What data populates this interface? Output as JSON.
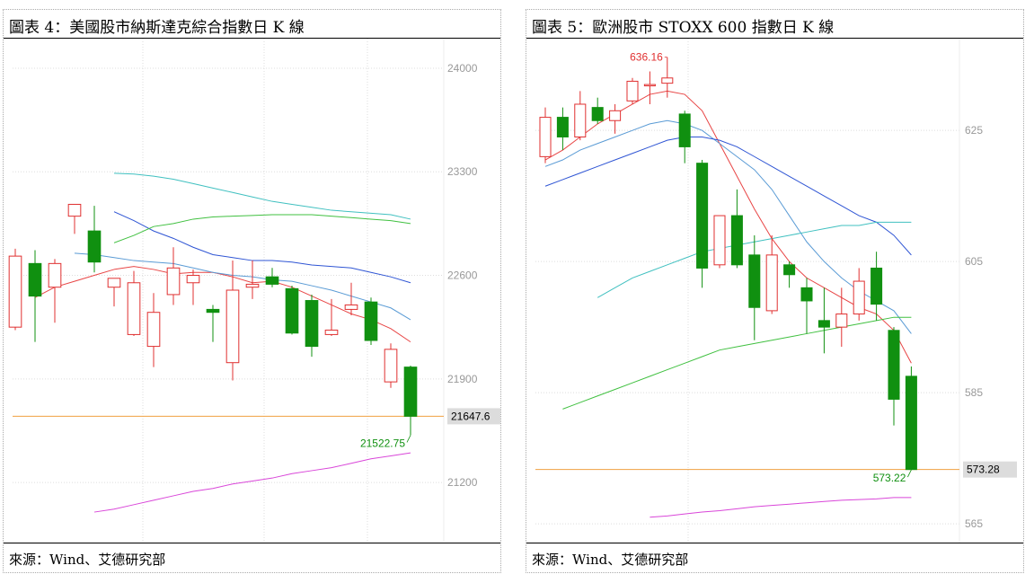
{
  "charts": [
    {
      "title": "圖表 4：美國股市納斯達克綜合指數日 K 線",
      "source": "來源：Wind、艾德研究部",
      "chart_data": {
        "type": "candlestick",
        "title": "圖表 4：美國股市納斯達克綜合指數日 K 線",
        "ylim": [
          20800,
          24200
        ],
        "yticks": [
          24000,
          23300,
          22600,
          21900,
          21200
        ],
        "grid": true,
        "candles": [
          {
            "o": 22250,
            "h": 22780,
            "l": 22230,
            "c": 22730
          },
          {
            "o": 22680,
            "h": 22770,
            "l": 22150,
            "c": 22460
          },
          {
            "o": 22520,
            "h": 22710,
            "l": 22280,
            "c": 22680
          },
          {
            "o": 23000,
            "h": 23050,
            "l": 22880,
            "c": 23080
          },
          {
            "o": 22900,
            "h": 23070,
            "l": 22620,
            "c": 22690
          },
          {
            "o": 22520,
            "h": 22560,
            "l": 22390,
            "c": 22580
          },
          {
            "o": 22200,
            "h": 22630,
            "l": 22190,
            "c": 22550
          },
          {
            "o": 22120,
            "h": 22480,
            "l": 21980,
            "c": 22350
          },
          {
            "o": 22470,
            "h": 22790,
            "l": 22400,
            "c": 22650
          },
          {
            "o": 22550,
            "h": 22640,
            "l": 22400,
            "c": 22600
          },
          {
            "o": 22370,
            "h": 22400,
            "l": 22150,
            "c": 22350
          },
          {
            "o": 22010,
            "h": 22700,
            "l": 21890,
            "c": 22500
          },
          {
            "o": 22520,
            "h": 22700,
            "l": 22440,
            "c": 22540
          },
          {
            "o": 22590,
            "h": 22650,
            "l": 22520,
            "c": 22540
          },
          {
            "o": 22510,
            "h": 22530,
            "l": 22200,
            "c": 22210
          },
          {
            "o": 22430,
            "h": 22470,
            "l": 22050,
            "c": 22120
          },
          {
            "o": 22200,
            "h": 22440,
            "l": 22190,
            "c": 22230
          },
          {
            "o": 22370,
            "h": 22550,
            "l": 22330,
            "c": 22400
          },
          {
            "o": 22420,
            "h": 22450,
            "l": 22130,
            "c": 22160
          },
          {
            "o": 21880,
            "h": 22140,
            "l": 21840,
            "c": 22100
          },
          {
            "o": 21980,
            "h": 21990,
            "l": 21520,
            "c": 21647.6
          }
        ],
        "moving_averages": [
          {
            "color": "#e84545",
            "values": [
              22450,
              22520,
              22560,
              22600,
              22640,
              22660,
              22640,
              22610,
              22620,
              22620,
              22590,
              22550,
              22560,
              22520,
              22460,
              22400,
              22340,
              22300,
              22240,
              22150
            ]
          },
          {
            "color": "#5a9bd5",
            "values": [
              22750,
              22740,
              22720,
              22700,
              22690,
              22680,
              22650,
              22620,
              22600,
              22590,
              22570,
              22560,
              22530,
              22500,
              22460,
              22420,
              22380,
              22300
            ]
          },
          {
            "color": "#2f55d4",
            "values": [
              23030,
              22970,
              22900,
              22850,
              22790,
              22740,
              22720,
              22700,
              22700,
              22690,
              22670,
              22660,
              22650,
              22620,
              22590,
              22550
            ]
          },
          {
            "color": "#40c040",
            "values": [
              22820,
              22870,
              22930,
              22950,
              22980,
              22995,
              23000,
              23005,
              23010,
              23010,
              23010,
              23000,
              22990,
              22980,
              22970,
              22950
            ]
          },
          {
            "color": "#40c0c0",
            "values": [
              23290,
              23285,
              23270,
              23250,
              23220,
              23190,
              23160,
              23130,
              23100,
              23080,
              23060,
              23040,
              23030,
              23020,
              23010,
              22980
            ]
          },
          {
            "color": "#d946d9",
            "values": [
              21000,
              21020,
              21050,
              21080,
              21110,
              21140,
              21160,
              21190,
              21210,
              21230,
              21260,
              21280,
              21300,
              21330,
              21360,
              21380,
              21400
            ]
          }
        ],
        "hline": {
          "value": 21647.6,
          "color": "#f0a040"
        },
        "last_label": "21647.6",
        "low_label": "21522.75"
      }
    },
    {
      "title": "圖表 5：歐洲股市 STOXX 600 指數日 K 線",
      "source": "來源：Wind、艾德研究部",
      "chart_data": {
        "type": "candlestick",
        "title": "圖表 5：歐洲股市 STOXX 600 指數日 K 線",
        "ylim": [
          562,
          639
        ],
        "yticks": [
          625,
          605,
          585,
          565
        ],
        "grid": true,
        "candles": [
          {
            "o": 621,
            "h": 628.5,
            "l": 620,
            "c": 627
          },
          {
            "o": 627,
            "h": 628.5,
            "l": 622,
            "c": 624
          },
          {
            "o": 624,
            "h": 631,
            "l": 623.5,
            "c": 629
          },
          {
            "o": 628.5,
            "h": 630,
            "l": 626,
            "c": 626.5
          },
          {
            "o": 626.5,
            "h": 629,
            "l": 624.5,
            "c": 628
          },
          {
            "o": 629.5,
            "h": 633,
            "l": 629,
            "c": 632.5
          },
          {
            "o": 632,
            "h": 634,
            "l": 629,
            "c": 632
          },
          {
            "o": 632.2,
            "h": 636.16,
            "l": 630,
            "c": 633
          },
          {
            "o": 627.5,
            "h": 628,
            "l": 620,
            "c": 622.5
          },
          {
            "o": 620,
            "h": 620.5,
            "l": 601,
            "c": 604
          },
          {
            "o": 604.5,
            "h": 612,
            "l": 604,
            "c": 612
          },
          {
            "o": 612,
            "h": 616,
            "l": 604,
            "c": 604.5
          },
          {
            "o": 606,
            "h": 609,
            "l": 593,
            "c": 598
          },
          {
            "o": 597.5,
            "h": 609,
            "l": 597,
            "c": 606
          },
          {
            "o": 604.5,
            "h": 605,
            "l": 601,
            "c": 603
          },
          {
            "o": 601,
            "h": 602.5,
            "l": 594,
            "c": 599
          },
          {
            "o": 596,
            "h": 601,
            "l": 591,
            "c": 595
          },
          {
            "o": 595,
            "h": 601,
            "l": 592,
            "c": 597
          },
          {
            "o": 597,
            "h": 604,
            "l": 596,
            "c": 602
          },
          {
            "o": 604,
            "h": 606.5,
            "l": 596,
            "c": 598.5
          },
          {
            "o": 594.5,
            "h": 595,
            "l": 580,
            "c": 584
          },
          {
            "o": 587.5,
            "h": 589,
            "l": 573.22,
            "c": 573.28
          }
        ],
        "moving_averages": [
          {
            "color": "#e84545",
            "values": [
              620.5,
              622,
              624,
              626,
              627.5,
              629,
              630.5,
              631,
              630.5,
              628,
              623,
              618,
              613,
              608.5,
              605,
              602.5,
              601,
              599.5,
              598,
              597,
              594.5,
              589.5
            ]
          },
          {
            "color": "#5a9bd5",
            "values": [
              619.5,
              620.5,
              622,
              623,
              624,
              625,
              626,
              626.5,
              626,
              625,
              623,
              621,
              619,
              616,
              612,
              608,
              605,
              602.5,
              600.5,
              599,
              597.5,
              594
            ]
          },
          {
            "color": "#2f55d4",
            "values": [
              616.5,
              617.5,
              618.5,
              619.5,
              620.5,
              621.5,
              622.5,
              623.5,
              624,
              624,
              623.5,
              622.5,
              621,
              619.5,
              618,
              616.5,
              615,
              613.5,
              612,
              611,
              609,
              606
            ]
          },
          {
            "color": "#40c040",
            "values": [
              582.5,
              583.5,
              584.5,
              585.5,
              586.5,
              587.5,
              588.5,
              589.5,
              590.5,
              591.5,
              592,
              592.5,
              593,
              593.5,
              594,
              594.5,
              595,
              595.5,
              596,
              596.5,
              596.5
            ]
          },
          {
            "color": "#40c0c0",
            "values": [
              599.5,
              601,
              602.5,
              603.5,
              604.5,
              605.5,
              606.5,
              607,
              607.5,
              608,
              608.5,
              609,
              609.5,
              610,
              610.5,
              610.5,
              611,
              611,
              611
            ]
          },
          {
            "color": "#d946d9",
            "values": [
              566,
              566.2,
              566.5,
              566.8,
              567,
              567.3,
              567.6,
              567.8,
              568,
              568.2,
              568.4,
              568.6,
              568.7,
              568.8,
              569,
              569
            ]
          }
        ],
        "hline": {
          "value": 573.28,
          "color": "#f0a040"
        },
        "last_label": "573.28",
        "low_label": "573.22",
        "high_label": "636.16"
      }
    }
  ]
}
